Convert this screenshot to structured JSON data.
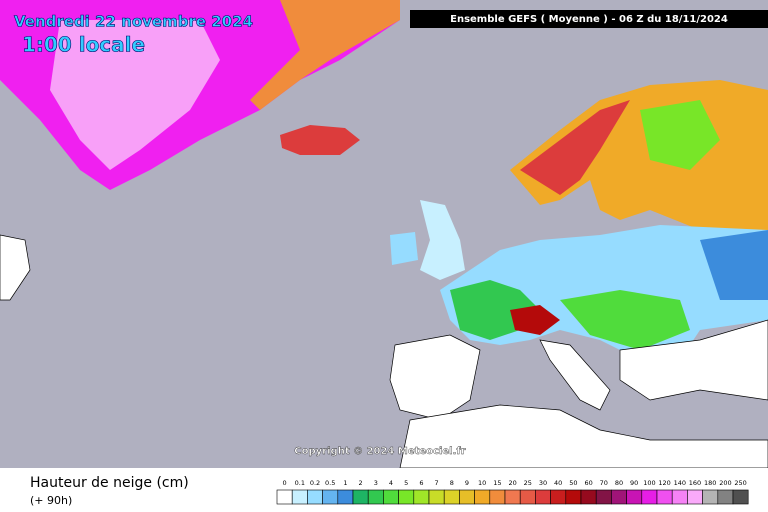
{
  "header": {
    "date": "Vendredi 22 novembre 2024",
    "time": "1:00 locale",
    "run": "Ensemble GEFS  ( Moyenne )  -  06 Z du 18/11/2024"
  },
  "copyright": "Copyright © 2024 Meteociel.fr",
  "legend": {
    "title": "Hauteur de neige (cm)",
    "subtitle": "(+ 90h)",
    "steps": [
      {
        "value": 0,
        "color": "#ffffff"
      },
      {
        "value": 0.1,
        "color": "#c8f0ff"
      },
      {
        "value": 0.2,
        "color": "#96dcff"
      },
      {
        "value": 0.5,
        "color": "#64b4f0"
      },
      {
        "value": 1,
        "color": "#3c8cdc"
      },
      {
        "value": 2,
        "color": "#1eb464"
      },
      {
        "value": 3,
        "color": "#32c850"
      },
      {
        "value": 4,
        "color": "#50dc3c"
      },
      {
        "value": 5,
        "color": "#78e628"
      },
      {
        "value": 6,
        "color": "#a0e628"
      },
      {
        "value": 7,
        "color": "#c8dc28"
      },
      {
        "value": 8,
        "color": "#dcd228"
      },
      {
        "value": 9,
        "color": "#e6be28"
      },
      {
        "value": 10,
        "color": "#f0aa28"
      },
      {
        "value": 15,
        "color": "#f08c3c"
      },
      {
        "value": 20,
        "color": "#f07850"
      },
      {
        "value": 25,
        "color": "#e65a46"
      },
      {
        "value": 30,
        "color": "#dc3c3c"
      },
      {
        "value": 40,
        "color": "#c81e1e"
      },
      {
        "value": 50,
        "color": "#b40a0a"
      },
      {
        "value": 60,
        "color": "#960a1e"
      },
      {
        "value": 70,
        "color": "#821446"
      },
      {
        "value": 80,
        "color": "#a01478"
      },
      {
        "value": 90,
        "color": "#c814b4"
      },
      {
        "value": 100,
        "color": "#e61ee6"
      },
      {
        "value": 120,
        "color": "#f050f0"
      },
      {
        "value": 140,
        "color": "#f582f5"
      },
      {
        "value": 160,
        "color": "#faaafa"
      },
      {
        "value": 180,
        "color": "#b4b4b4"
      },
      {
        "value": 200,
        "color": "#828282"
      },
      {
        "value": 250,
        "color": "#505050"
      }
    ]
  }
}
